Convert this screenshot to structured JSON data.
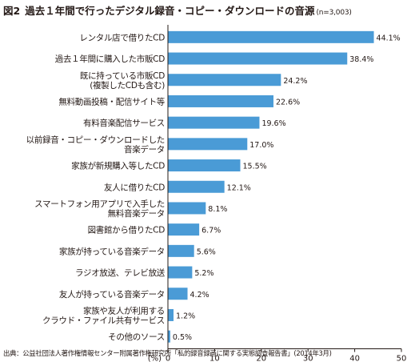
{
  "figure_label": "図2",
  "sample_note": "(n=3,003)",
  "source_note": "出典：公益社団法人著作権情報センター附属著作権研究所「私的録音録画に関する実態調査報告書」(2014年3月)",
  "colors": {
    "bar": "#4a9bd6",
    "axis": "#231815",
    "grid": "#d0d0d0"
  },
  "chart_data": {
    "type": "bar",
    "orientation": "horizontal",
    "title": "過去１年間で行ったデジタル録音・コピー・ダウンロードの音源",
    "xlabel": "(%)",
    "xlim": [
      0,
      50
    ],
    "xticks": [
      0,
      10,
      20,
      30,
      40,
      50
    ],
    "grid": false,
    "categories": [
      [
        "レンタル店で借りたCD"
      ],
      [
        "過去１年間に購入した市販CD"
      ],
      [
        "既に持っている市販CD",
        "(複製したCDも含む)"
      ],
      [
        "無料動画投稿・配信サイト等"
      ],
      [
        "有料音楽配信サービス"
      ],
      [
        "以前録音・コピー・ダウンロードした",
        "音楽データ"
      ],
      [
        "家族が新規購入等したCD"
      ],
      [
        "友人に借りたCD"
      ],
      [
        "スマートフォン用アプリで入手した",
        "無料音楽データ"
      ],
      [
        "図書館から借りたCD"
      ],
      [
        "家族が持っている音楽データ"
      ],
      [
        "ラジオ放送、テレビ放送"
      ],
      [
        "友人が持っている音楽データ"
      ],
      [
        "家族や友人が利用する",
        "クラウド・ファイル共有サービス"
      ],
      [
        "その他のソース"
      ]
    ],
    "values": [
      44.1,
      38.4,
      24.2,
      22.6,
      19.6,
      17.0,
      15.5,
      12.1,
      8.1,
      6.7,
      5.6,
      5.2,
      4.2,
      1.2,
      0.5
    ],
    "value_labels": [
      "44.1%",
      "38.4%",
      "24.2%",
      "22.6%",
      "19.6%",
      "17.0%",
      "15.5%",
      "12.1%",
      "8.1%",
      "6.7%",
      "5.6%",
      "5.2%",
      "4.2%",
      "1.2%",
      "0.5%"
    ]
  }
}
